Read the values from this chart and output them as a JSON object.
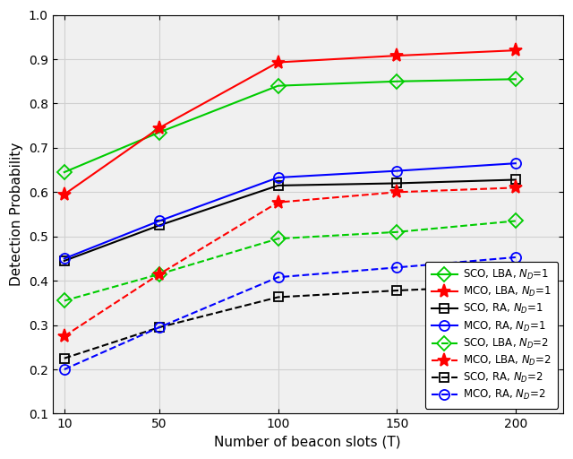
{
  "x": [
    10,
    50,
    100,
    150,
    200
  ],
  "series": {
    "SCO_LBA_ND1": {
      "y": [
        0.645,
        0.735,
        0.84,
        0.85,
        0.855
      ],
      "color": "#00CC00",
      "linestyle": "-",
      "marker": "D",
      "label": "SCO, LBA, N_D=1",
      "markersize": 8,
      "linewidth": 1.5
    },
    "MCO_LBA_ND1": {
      "y": [
        0.595,
        0.745,
        0.893,
        0.908,
        0.92
      ],
      "color": "#FF0000",
      "linestyle": "-",
      "marker": "*",
      "label": "MCO, LBA, N_D=1",
      "markersize": 11,
      "linewidth": 1.5
    },
    "SCO_RA_ND1": {
      "y": [
        0.445,
        0.525,
        0.615,
        0.62,
        0.628
      ],
      "color": "#000000",
      "linestyle": "-",
      "marker": "s",
      "label": "SCO, RA, N_D=1",
      "markersize": 7,
      "linewidth": 1.5
    },
    "MCO_RA_ND1": {
      "y": [
        0.45,
        0.535,
        0.633,
        0.648,
        0.665
      ],
      "color": "#0000FF",
      "linestyle": "-",
      "marker": "o",
      "label": "MCO, RA, N_D=1",
      "markersize": 8,
      "linewidth": 1.5
    },
    "SCO_LBA_ND2": {
      "y": [
        0.355,
        0.415,
        0.495,
        0.51,
        0.535
      ],
      "color": "#00CC00",
      "linestyle": "--",
      "marker": "D",
      "label": "SCO, LBA, N_D=2",
      "markersize": 8,
      "linewidth": 1.5
    },
    "MCO_LBA_ND2": {
      "y": [
        0.275,
        0.415,
        0.577,
        0.6,
        0.61
      ],
      "color": "#FF0000",
      "linestyle": "--",
      "marker": "*",
      "label": "MCO, LBA, N_D=2",
      "markersize": 11,
      "linewidth": 1.5
    },
    "SCO_RA_ND2": {
      "y": [
        0.225,
        0.295,
        0.363,
        0.378,
        0.39
      ],
      "color": "#000000",
      "linestyle": "--",
      "marker": "s",
      "label": "SCO, RA, N_D=2",
      "markersize": 7,
      "linewidth": 1.5
    },
    "MCO_RA_ND2": {
      "y": [
        0.2,
        0.295,
        0.408,
        0.43,
        0.453
      ],
      "color": "#0000FF",
      "linestyle": "--",
      "marker": "o",
      "label": "MCO, RA, N_D=2",
      "markersize": 8,
      "linewidth": 1.5
    }
  },
  "xlabel": "Number of beacon slots (T)",
  "ylabel": "Detection Probability",
  "ylim": [
    0.1,
    1.0
  ],
  "xlim": [
    5,
    220
  ],
  "xticks": [
    10,
    50,
    100,
    150,
    200
  ],
  "yticks": [
    0.1,
    0.2,
    0.3,
    0.4,
    0.5,
    0.6,
    0.7,
    0.8,
    0.9,
    1.0
  ],
  "grid": true,
  "legend_loc": "lower right",
  "background_color": "#f0f0f0"
}
